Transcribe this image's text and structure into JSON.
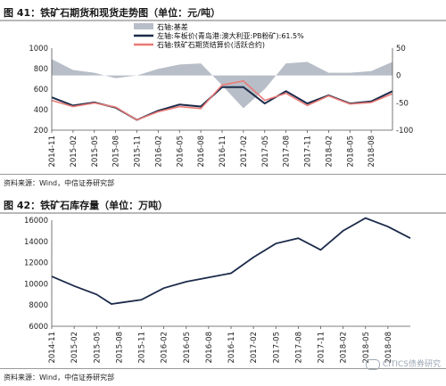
{
  "chart_data": [
    {
      "type": "line",
      "title": "图 41：铁矿石期货和现货走势图（单位：元/吨）",
      "source": "资料来源：Wind，中信证券研究部",
      "x_ticks": [
        "2014-11",
        "2015-02",
        "2015-05",
        "2015-08",
        "2015-11",
        "2016-02",
        "2016-05",
        "2016-08",
        "2016-11",
        "2017-02",
        "2017-05",
        "2017-08",
        "2017-11",
        "2018-02",
        "2018-05",
        "2018-08"
      ],
      "y_left_ticks": [
        "1000",
        "800",
        "600",
        "400",
        "200"
      ],
      "y_right_ticks": [
        "50",
        "0",
        "-50",
        "-100"
      ],
      "ylim_left": [
        200,
        1000
      ],
      "ylim_right": [
        -100,
        50
      ],
      "x_range": [
        "2014-11",
        "2018-11"
      ],
      "legend_position": "top-center",
      "series": [
        {
          "name": "石轴:基差",
          "axis": "right",
          "render": "area",
          "color": "#b8bec7",
          "x": [
            "2014-11",
            "2015-02",
            "2015-05",
            "2015-08",
            "2015-11",
            "2016-02",
            "2016-05",
            "2016-08",
            "2016-11",
            "2017-02",
            "2017-05",
            "2017-08",
            "2017-11",
            "2018-02",
            "2018-05",
            "2018-08",
            "2018-11"
          ],
          "values": [
            30,
            10,
            5,
            -5,
            0,
            12,
            20,
            22,
            -18,
            -60,
            -25,
            22,
            25,
            5,
            5,
            8,
            25
          ]
        },
        {
          "name": "左轴:车板价(青岛港:澳大利亚:PB粉矿):61.5%",
          "axis": "left",
          "render": "line",
          "color": "#1c2b4a",
          "x": [
            "2014-11",
            "2015-02",
            "2015-05",
            "2015-08",
            "2015-11",
            "2016-02",
            "2016-05",
            "2016-08",
            "2016-11",
            "2017-02",
            "2017-05",
            "2017-08",
            "2017-11",
            "2018-02",
            "2018-05",
            "2018-08",
            "2018-11"
          ],
          "values": [
            520,
            440,
            470,
            420,
            300,
            390,
            450,
            430,
            620,
            620,
            460,
            580,
            460,
            540,
            460,
            480,
            580
          ]
        },
        {
          "name": "石轴:铁矿石期货结算价(活跃合约)",
          "axis": "left",
          "render": "line",
          "color": "#ea7a76",
          "x": [
            "2014-11",
            "2015-02",
            "2015-05",
            "2015-08",
            "2015-11",
            "2016-02",
            "2016-05",
            "2016-08",
            "2016-11",
            "2017-02",
            "2017-05",
            "2017-08",
            "2017-11",
            "2018-02",
            "2018-05",
            "2018-08",
            "2018-11"
          ],
          "values": [
            490,
            430,
            465,
            425,
            300,
            380,
            430,
            410,
            640,
            680,
            490,
            560,
            440,
            535,
            455,
            470,
            555
          ]
        }
      ]
    },
    {
      "type": "line",
      "title": "图 42：铁矿石库存量（单位：万吨）",
      "source": "资料来源：Wind，中信证券研究部",
      "x_ticks": [
        "2014-11",
        "2015-02",
        "2015-05",
        "2015-08",
        "2015-11",
        "2016-02",
        "2016-05",
        "2016-08",
        "2016-11",
        "2017-02",
        "2017-05",
        "2017-08",
        "2017-11",
        "2018-02",
        "2018-05",
        "2018-08"
      ],
      "y_ticks": [
        "16000",
        "14000",
        "12000",
        "10000",
        "8000",
        "6000"
      ],
      "ylim": [
        6000,
        16000
      ],
      "x_range": [
        "2014-11",
        "2018-11"
      ],
      "series": [
        {
          "name": "",
          "color": "#1c2b4a",
          "x": [
            "2014-11",
            "2015-02",
            "2015-05",
            "2015-07",
            "2015-08",
            "2015-11",
            "2016-02",
            "2016-05",
            "2016-08",
            "2016-11",
            "2017-02",
            "2017-05",
            "2017-08",
            "2017-11",
            "2018-02",
            "2018-05",
            "2018-08",
            "2018-11"
          ],
          "values": [
            10700,
            9800,
            9000,
            8100,
            8200,
            8500,
            9600,
            10200,
            10600,
            11000,
            12500,
            13800,
            14300,
            13200,
            15000,
            16200,
            15400,
            14300
          ]
        }
      ]
    }
  ],
  "watermark": "CITICS债券研究"
}
